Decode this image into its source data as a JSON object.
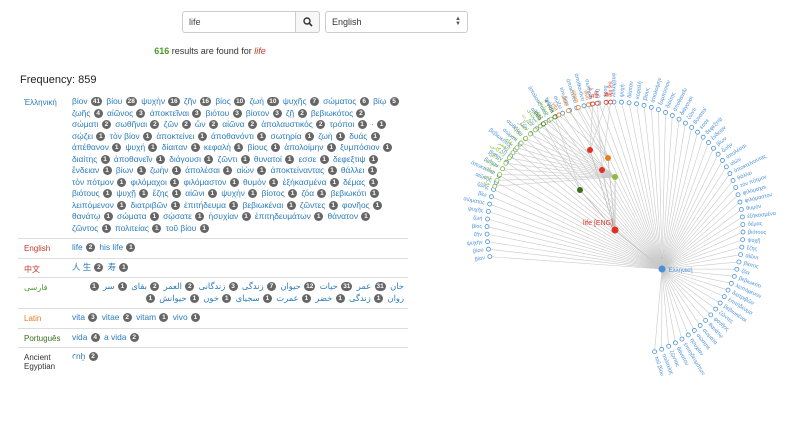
{
  "search": {
    "value": "life",
    "placeholder": ""
  },
  "language_select": {
    "selected": "English"
  },
  "results": {
    "count": "616",
    "middle": " results are found for ",
    "term": "life"
  },
  "frequency": "Frequency: 859",
  "languages": [
    {
      "name": "Ἑλληνική",
      "color": "#2a7bbd",
      "dir": "ltr",
      "words": [
        [
          "βίον",
          "41"
        ],
        [
          "βίου",
          "28"
        ],
        [
          "ψυχὴν",
          "16"
        ],
        [
          "ζῆν",
          "16"
        ],
        [
          "βίος",
          "10"
        ],
        [
          "ζωή",
          "10"
        ],
        [
          "ψυχῆς",
          "7"
        ],
        [
          "σώματος",
          "6"
        ],
        [
          "βίῳ",
          "5"
        ],
        [
          "ζωῆς",
          "4"
        ],
        [
          "αἰῶνος",
          "3"
        ],
        [
          "ἀποκτεῖναι",
          "3"
        ],
        [
          "βιότου",
          "3"
        ],
        [
          "βίοτον",
          "3"
        ],
        [
          "ζῇ",
          "2"
        ],
        [
          "βεβιωκότος",
          "2"
        ],
        [
          "σώματι",
          "2"
        ],
        [
          "σωθῆναι",
          "2"
        ],
        [
          "ζῶν",
          "2"
        ],
        [
          "ὤν",
          "2"
        ],
        [
          "αἰῶνα",
          "2"
        ],
        [
          "ἀπολαυστικός",
          "2"
        ],
        [
          "τρόποι",
          "1"
        ],
        [
          "·",
          "1"
        ],
        [
          "σῴζει",
          "1"
        ],
        [
          "τὸν βίον",
          "1"
        ],
        [
          "ἀποκτείνει",
          "1"
        ],
        [
          "ἀποθανόντι",
          "1"
        ],
        [
          "σωτηρία",
          "1"
        ],
        [
          "ζωὴ",
          "1"
        ],
        [
          "δυάς",
          "1"
        ],
        [
          "ἀπέθανον",
          "1"
        ],
        [
          "ψυχή",
          "1"
        ],
        [
          "δίαιταν",
          "1"
        ],
        [
          "κεφαλὴ",
          "1"
        ],
        [
          "βίους",
          "1"
        ],
        [
          "ἀπολοίμην",
          "1"
        ],
        [
          "ξυμπόσιον",
          "1"
        ],
        [
          "διαίτης",
          "1"
        ],
        [
          "ἀποθανεῖν",
          "1"
        ],
        [
          "διάγουσι",
          "1"
        ],
        [
          "ζῶντι",
          "1"
        ],
        [
          "θυνατοί",
          "1"
        ],
        [
          "εσσε",
          "1"
        ],
        [
          "δεφεξτιψ",
          "1"
        ],
        [
          "ἔνδειαν",
          "1"
        ],
        [
          "βίων",
          "1"
        ],
        [
          "ζωὴν",
          "1"
        ],
        [
          "ἀπολέσαι",
          "1"
        ],
        [
          "αἰών",
          "1"
        ],
        [
          "ἀποκτείναντας",
          "1"
        ],
        [
          "θάλλει",
          "1"
        ],
        [
          "τὸν πότμον",
          "1"
        ],
        [
          "φιλόμαχοι",
          "1"
        ],
        [
          "φιλόμαστον",
          "1"
        ],
        [
          "θυμὸν",
          "1"
        ],
        [
          "ἐξήκασμένα",
          "1"
        ],
        [
          "δέμας",
          "1"
        ],
        [
          "βιότους",
          "1"
        ],
        [
          "ψυχῇ",
          "1"
        ],
        [
          "ἔζης",
          "1"
        ],
        [
          "αἰῶνι",
          "1"
        ],
        [
          "ψυχὴν",
          "1"
        ],
        [
          "βίοτος",
          "1"
        ],
        [
          "ζόα",
          "1"
        ],
        [
          "βεβιωκότι",
          "1"
        ],
        [
          "λειπόμενον",
          "1"
        ],
        [
          "διατριβῶν",
          "1"
        ],
        [
          "ἐπιτήδευμα",
          "1"
        ],
        [
          "βεβιωκέναι",
          "1"
        ],
        [
          "ζῶντες",
          "1"
        ],
        [
          "φονῆος",
          "1"
        ],
        [
          "θανάτῳ",
          "1"
        ],
        [
          "σώματα",
          "1"
        ],
        [
          "σῴσατε",
          "1"
        ],
        [
          "ἡσυχίαν",
          "1"
        ],
        [
          "ἐπιτηδευμάτων",
          "1"
        ],
        [
          "θάνατον",
          "1"
        ],
        [
          "ζῶντος",
          "1"
        ],
        [
          "πολιτείας",
          "1"
        ],
        [
          "τοῦ βίου",
          "1"
        ]
      ]
    },
    {
      "name": "English",
      "color": "#c0392b",
      "dir": "ltr",
      "words": [
        [
          "life",
          "2"
        ],
        [
          "his life",
          "1"
        ]
      ]
    },
    {
      "name": "中文",
      "color": "#c0392b",
      "dir": "ltr",
      "words": [
        [
          "人 生",
          "2"
        ],
        [
          "寿",
          "1"
        ]
      ]
    },
    {
      "name": "فارسی",
      "color": "#4a9b2a",
      "dir": "rtl",
      "words": [
        [
          "جان",
          "31"
        ],
        [
          "عمر",
          "31"
        ],
        [
          "حيات",
          "12"
        ],
        [
          "حيوان",
          "7"
        ],
        [
          "زندگی",
          "3"
        ],
        [
          "زندگانی",
          "2"
        ],
        [
          "العمر",
          "2"
        ],
        [
          "بقای",
          "1"
        ],
        [
          "سر",
          "1"
        ],
        [
          "روان",
          "1"
        ],
        [
          "زندگی",
          "1"
        ],
        [
          "خضر",
          "1"
        ],
        [
          "عمرت",
          "1"
        ],
        [
          "سجيای",
          "1"
        ],
        [
          "خون",
          "1"
        ],
        [
          "حیوانش",
          "1"
        ]
      ]
    },
    {
      "name": "Latin",
      "color": "#e67e22",
      "dir": "ltr",
      "words": [
        [
          "vita",
          "3"
        ],
        [
          "vitae",
          "2"
        ],
        [
          "vitam",
          "1"
        ],
        [
          "vivo",
          "1"
        ]
      ]
    },
    {
      "name": "Português",
      "color": "#3a6e1a",
      "dir": "ltr",
      "words": [
        [
          "vida",
          "4"
        ],
        [
          "a vida",
          "2"
        ]
      ]
    },
    {
      "name": "Ancient Egyptian",
      "color": "#333333",
      "dir": "ltr",
      "words": [
        [
          "ꜥnḫ",
          "2"
        ]
      ]
    }
  ],
  "tree": {
    "root_label": "life [ENG]",
    "center_label": "Ἑλληνική",
    "greek_words": [
      "βίον",
      "βίου",
      "ψυχὴν",
      "ζῆν",
      "βίος",
      "ζωή",
      "ψυχῆς",
      "σώματος",
      "βίῳ",
      "ζωῆς",
      "αἰῶνος",
      "ἀποκτεῖναι",
      "βιότου",
      "βίοτον",
      "ζῇ",
      "βεβιωκότος",
      "σώματι",
      "σωθῆναι",
      "ζῶν",
      "ὤν",
      "αἰῶνα",
      "ἀπολαυστικός",
      "τρόποι",
      "σῴζει",
      "τὸν βίον",
      "ἀποκτείνει",
      "ἀποθανόντι",
      "σωτηρία",
      "ζωὴ",
      "δυάς",
      "ἀπέθανον",
      "ψυχή",
      "δίαιταν",
      "κεφαλὴ",
      "βίους",
      "ἀπολοίμην",
      "ξυμπόσιον",
      "διαίτης",
      "ἀποθανεῖν",
      "διάγουσι",
      "ζῶντι",
      "θυνατοί",
      "εσσε",
      "δεφεξτιψ",
      "ἔνδειαν",
      "βίων",
      "ζωὴν",
      "ἀπολέσαι",
      "αἰών",
      "ἀποκτείναντας",
      "θάλλει",
      "τὸν πότμον",
      "φιλόμαχοι",
      "φιλόμαστον",
      "θυμὸν",
      "ἐξήκασμένα",
      "δέμας",
      "βιότους",
      "ψυχῇ",
      "ἔζης",
      "αἰῶνι",
      "βίοτος",
      "ζόα",
      "βεβιωκότι",
      "λειπόμενον",
      "διατριβῶν",
      "ἐπιτήδευμα",
      "βεβιωκέναι",
      "ζῶντες",
      "φονῆος",
      "θανάτῳ",
      "σώματα",
      "σῴσατε",
      "ἡσυχίαν",
      "ἐπιτηδευμάτων",
      "θάνατον",
      "ζῶντος",
      "πολιτείας",
      "τοῦ βίου"
    ],
    "branches": [
      {
        "lang": "فارسی",
        "color": "#8dbb3e",
        "words": [
          "جان",
          "عمر",
          "حيات",
          "حيوان",
          "زندگی",
          "زندگانی",
          "العمر",
          "بقای",
          "سر",
          "روان",
          "خضر",
          "عمرت",
          "سجيای",
          "خون",
          "حیوانش"
        ]
      },
      {
        "lang": "Latin",
        "color": "#e67e22",
        "words": [
          "vita",
          "vitae",
          "vitam",
          "vivo"
        ]
      },
      {
        "lang": "中文",
        "color": "#e0321e",
        "words": [
          "人 生",
          "寿"
        ]
      },
      {
        "lang": "English",
        "color": "#e0321e",
        "words": [
          "life",
          "his life"
        ]
      },
      {
        "lang": "Português",
        "color": "#3a6e1a",
        "words": [
          "vida",
          "a vida"
        ]
      }
    ]
  }
}
